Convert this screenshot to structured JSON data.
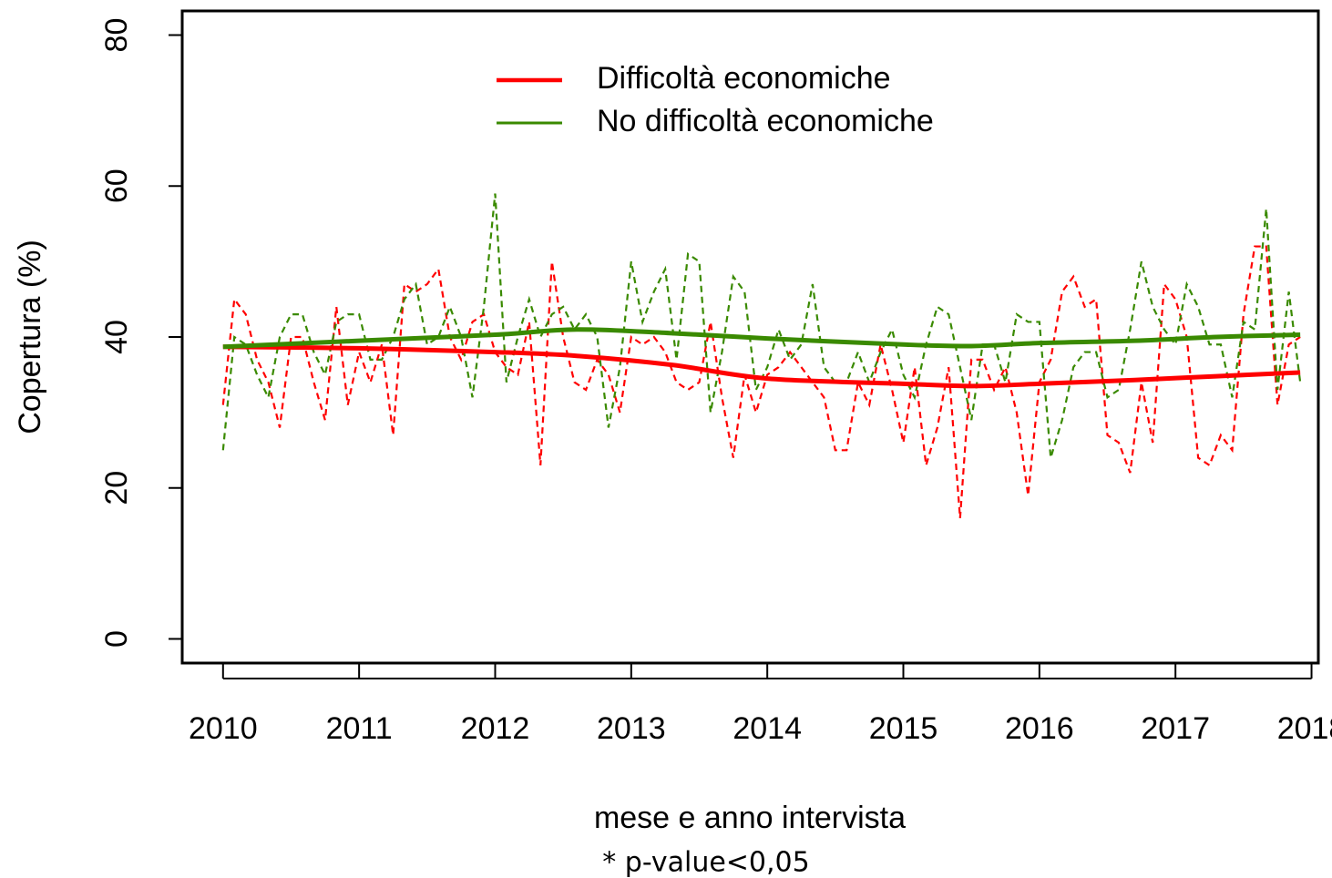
{
  "chart_data": {
    "type": "line",
    "xlabel": "mese e anno intervista",
    "ylabel": "Copertura (%)",
    "footnote": "* p-value<0,05",
    "xlim": [
      2009.7,
      2018.05
    ],
    "ylim": [
      -3.2,
      83.2
    ],
    "xticks": [
      2010,
      2011,
      2012,
      2013,
      2014,
      2015,
      2016,
      2017,
      2018
    ],
    "yticks": [
      0,
      20,
      40,
      60,
      80
    ],
    "legend": "top",
    "x": [
      2010,
      2010.083,
      2010.167,
      2010.25,
      2010.333,
      2010.417,
      2010.5,
      2010.583,
      2010.667,
      2010.75,
      2010.833,
      2010.917,
      2011,
      2011.083,
      2011.167,
      2011.25,
      2011.333,
      2011.417,
      2011.5,
      2011.583,
      2011.667,
      2011.75,
      2011.833,
      2011.917,
      2012,
      2012.083,
      2012.167,
      2012.25,
      2012.333,
      2012.417,
      2012.5,
      2012.583,
      2012.667,
      2012.75,
      2012.833,
      2012.917,
      2013,
      2013.083,
      2013.167,
      2013.25,
      2013.333,
      2013.417,
      2013.5,
      2013.583,
      2013.667,
      2013.75,
      2013.833,
      2013.917,
      2014,
      2014.083,
      2014.167,
      2014.25,
      2014.333,
      2014.417,
      2014.5,
      2014.583,
      2014.667,
      2014.75,
      2014.833,
      2014.917,
      2015,
      2015.083,
      2015.167,
      2015.25,
      2015.333,
      2015.417,
      2015.5,
      2015.583,
      2015.667,
      2015.75,
      2015.833,
      2015.917,
      2016,
      2016.083,
      2016.167,
      2016.25,
      2016.333,
      2016.417,
      2016.5,
      2016.583,
      2016.667,
      2016.75,
      2016.833,
      2016.917,
      2017,
      2017.083,
      2017.167,
      2017.25,
      2017.333,
      2017.417,
      2017.5,
      2017.583,
      2017.667,
      2017.75,
      2017.833,
      2017.917
    ],
    "trend_x": [
      2010,
      2011,
      2012,
      2012.6,
      2013.3,
      2014,
      2015,
      2015.5,
      2016,
      2016.7,
      2017.3,
      2017.917
    ],
    "series": [
      {
        "name": "Difficoltà economiche",
        "color": "#ff0000",
        "values": [
          31,
          45,
          43,
          37,
          34,
          28,
          40,
          40,
          34,
          29,
          44,
          31,
          38,
          34,
          39,
          27,
          47,
          46,
          47,
          49,
          40,
          37,
          42,
          43,
          38,
          36,
          35,
          42,
          23,
          50,
          40,
          34,
          33,
          37,
          35,
          30,
          40,
          39,
          40,
          38,
          34,
          33,
          34,
          42,
          32,
          24,
          35,
          30,
          35,
          36,
          38,
          36,
          34,
          32,
          25,
          25,
          34,
          31,
          39,
          33,
          26,
          36,
          23,
          28,
          36,
          16,
          37,
          37,
          33,
          36,
          30,
          19,
          34,
          37,
          46,
          48,
          44,
          45,
          27,
          26,
          22,
          34,
          26,
          47,
          45,
          40,
          24,
          23,
          27,
          25,
          43,
          52,
          52,
          31,
          39,
          40
        ],
        "trend": [
          38.7,
          38.5,
          38,
          37.5,
          36.3,
          34.5,
          33.8,
          33.5,
          33.8,
          34.3,
          34.8,
          35.3
        ]
      },
      {
        "name": "No difficoltà economiche",
        "color": "#3a8a00",
        "values": [
          25,
          40,
          39,
          35,
          32,
          40,
          43,
          43,
          38,
          35,
          42,
          43,
          43,
          37,
          37,
          40,
          45,
          47,
          39,
          40,
          44,
          40,
          32,
          44,
          59,
          34,
          40,
          45,
          40,
          43,
          44,
          41,
          43,
          40,
          28,
          36,
          50,
          42,
          46,
          49,
          37,
          51,
          50,
          30,
          38,
          48,
          46,
          33,
          36,
          41,
          37,
          39,
          47,
          36,
          34,
          34,
          38,
          34,
          38,
          41,
          35,
          32,
          39,
          44,
          43,
          36,
          29,
          39,
          39,
          34,
          43,
          42,
          42,
          24,
          29,
          36,
          38,
          38,
          32,
          33,
          41,
          50,
          44,
          41,
          39,
          47,
          44,
          39,
          39,
          32,
          42,
          41,
          57,
          33,
          46,
          34
        ],
        "trend": [
          38.7,
          39.5,
          40.3,
          41,
          40.5,
          39.8,
          39,
          38.8,
          39.2,
          39.5,
          40,
          40.3
        ]
      }
    ]
  }
}
